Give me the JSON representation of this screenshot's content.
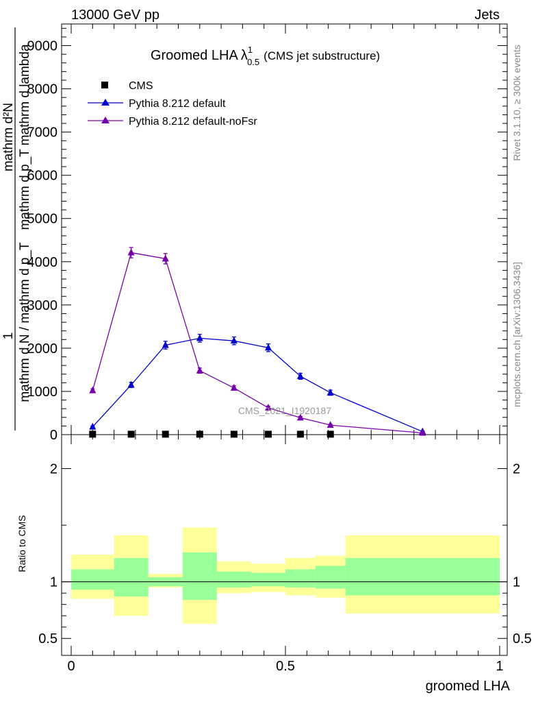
{
  "header": {
    "energy_label": "13000 GeV pp",
    "process_label": "Jets",
    "rivet_label": "Rivet 3.1.10, ≥ 300k events",
    "mcplots_label": "mcplots.cern.ch [arXiv:1306.3436]",
    "watermark": "CMS_2021_I1920187"
  },
  "plot_title": {
    "main": "Groomed LHA",
    "lambda": "λ",
    "sup": "1",
    "sub": "0.5",
    "suffix": "(CMS jet substructure)"
  },
  "colors": {
    "cms": "#000000",
    "default": "#0000cc",
    "nofsr": "#7700aa",
    "band_inner": "#99ff99",
    "band_outer": "#ffff99"
  },
  "chart_data": [
    {
      "type": "line",
      "panel": "main",
      "xlim": [
        0,
        1
      ],
      "ylim": [
        0,
        9500
      ],
      "ylabel_numerator": "1",
      "ylabel_denominator": "mathrm d N / mathrm d p_T",
      "ylabel_right_top": "mathrm d²N",
      "ylabel_right_bottom": "mathrm d p_T mathrm d lambda",
      "yticks": [
        0,
        1000,
        2000,
        3000,
        4000,
        5000,
        6000,
        7000,
        8000,
        9000
      ],
      "ytick_labels": [
        "0",
        "1000",
        "2000",
        "3000",
        "4000",
        "5000",
        "6000",
        "7000",
        "8000",
        "9000"
      ],
      "series": [
        {
          "name": "CMS",
          "marker": "square",
          "x": [
            0.05,
            0.14,
            0.22,
            0.3,
            0.38,
            0.46,
            0.535,
            0.605
          ],
          "y": [
            10,
            10,
            10,
            10,
            10,
            10,
            10,
            10
          ]
        },
        {
          "name": "Pythia 8.212 default",
          "marker": "triangle",
          "x": [
            0.05,
            0.14,
            0.22,
            0.3,
            0.38,
            0.46,
            0.535,
            0.605,
            0.82
          ],
          "y": [
            180,
            1150,
            2070,
            2230,
            2170,
            2010,
            1350,
            970,
            70
          ],
          "err": [
            20,
            60,
            90,
            90,
            90,
            90,
            70,
            60,
            15
          ]
        },
        {
          "name": "Pythia 8.212 default-noFsr",
          "marker": "triangle",
          "x": [
            0.05,
            0.14,
            0.22,
            0.3,
            0.38,
            0.46,
            0.535,
            0.605,
            0.82
          ],
          "y": [
            1020,
            4210,
            4070,
            1480,
            1080,
            620,
            390,
            220,
            40
          ],
          "err": [
            40,
            120,
            120,
            60,
            50,
            40,
            30,
            20,
            10
          ]
        }
      ]
    },
    {
      "type": "area",
      "panel": "ratio",
      "xlabel": "groomed LHA",
      "ylabel": "Ratio to CMS",
      "xlim": [
        0,
        1
      ],
      "ylim": [
        0.35,
        2.3
      ],
      "xticks": [
        0,
        0.5,
        1
      ],
      "xtick_labels": [
        "0",
        "0.5",
        "1"
      ],
      "yticks": [
        0.5,
        1,
        2
      ],
      "ytick_labels": [
        "0.5",
        "1",
        "2"
      ],
      "reference_line": 1,
      "bins": [
        {
          "x0": 0.0,
          "x1": 0.1,
          "inner": [
            0.93,
            1.11
          ],
          "outer": [
            0.85,
            1.24
          ]
        },
        {
          "x0": 0.1,
          "x1": 0.18,
          "inner": [
            0.87,
            1.21
          ],
          "outer": [
            0.7,
            1.41
          ]
        },
        {
          "x0": 0.18,
          "x1": 0.26,
          "inner": [
            0.96,
            1.04
          ],
          "outer": [
            0.95,
            1.07
          ]
        },
        {
          "x0": 0.26,
          "x1": 0.34,
          "inner": [
            0.84,
            1.26
          ],
          "outer": [
            0.63,
            1.48
          ]
        },
        {
          "x0": 0.34,
          "x1": 0.42,
          "inner": [
            0.95,
            1.09
          ],
          "outer": [
            0.9,
            1.18
          ]
        },
        {
          "x0": 0.42,
          "x1": 0.5,
          "inner": [
            0.96,
            1.08
          ],
          "outer": [
            0.91,
            1.16
          ]
        },
        {
          "x0": 0.5,
          "x1": 0.57,
          "inner": [
            0.95,
            1.11
          ],
          "outer": [
            0.88,
            1.21
          ]
        },
        {
          "x0": 0.57,
          "x1": 0.64,
          "inner": [
            0.94,
            1.14
          ],
          "outer": [
            0.86,
            1.23
          ]
        },
        {
          "x0": 0.64,
          "x1": 1.0,
          "inner": [
            0.88,
            1.21
          ],
          "outer": [
            0.72,
            1.41
          ]
        }
      ]
    }
  ]
}
